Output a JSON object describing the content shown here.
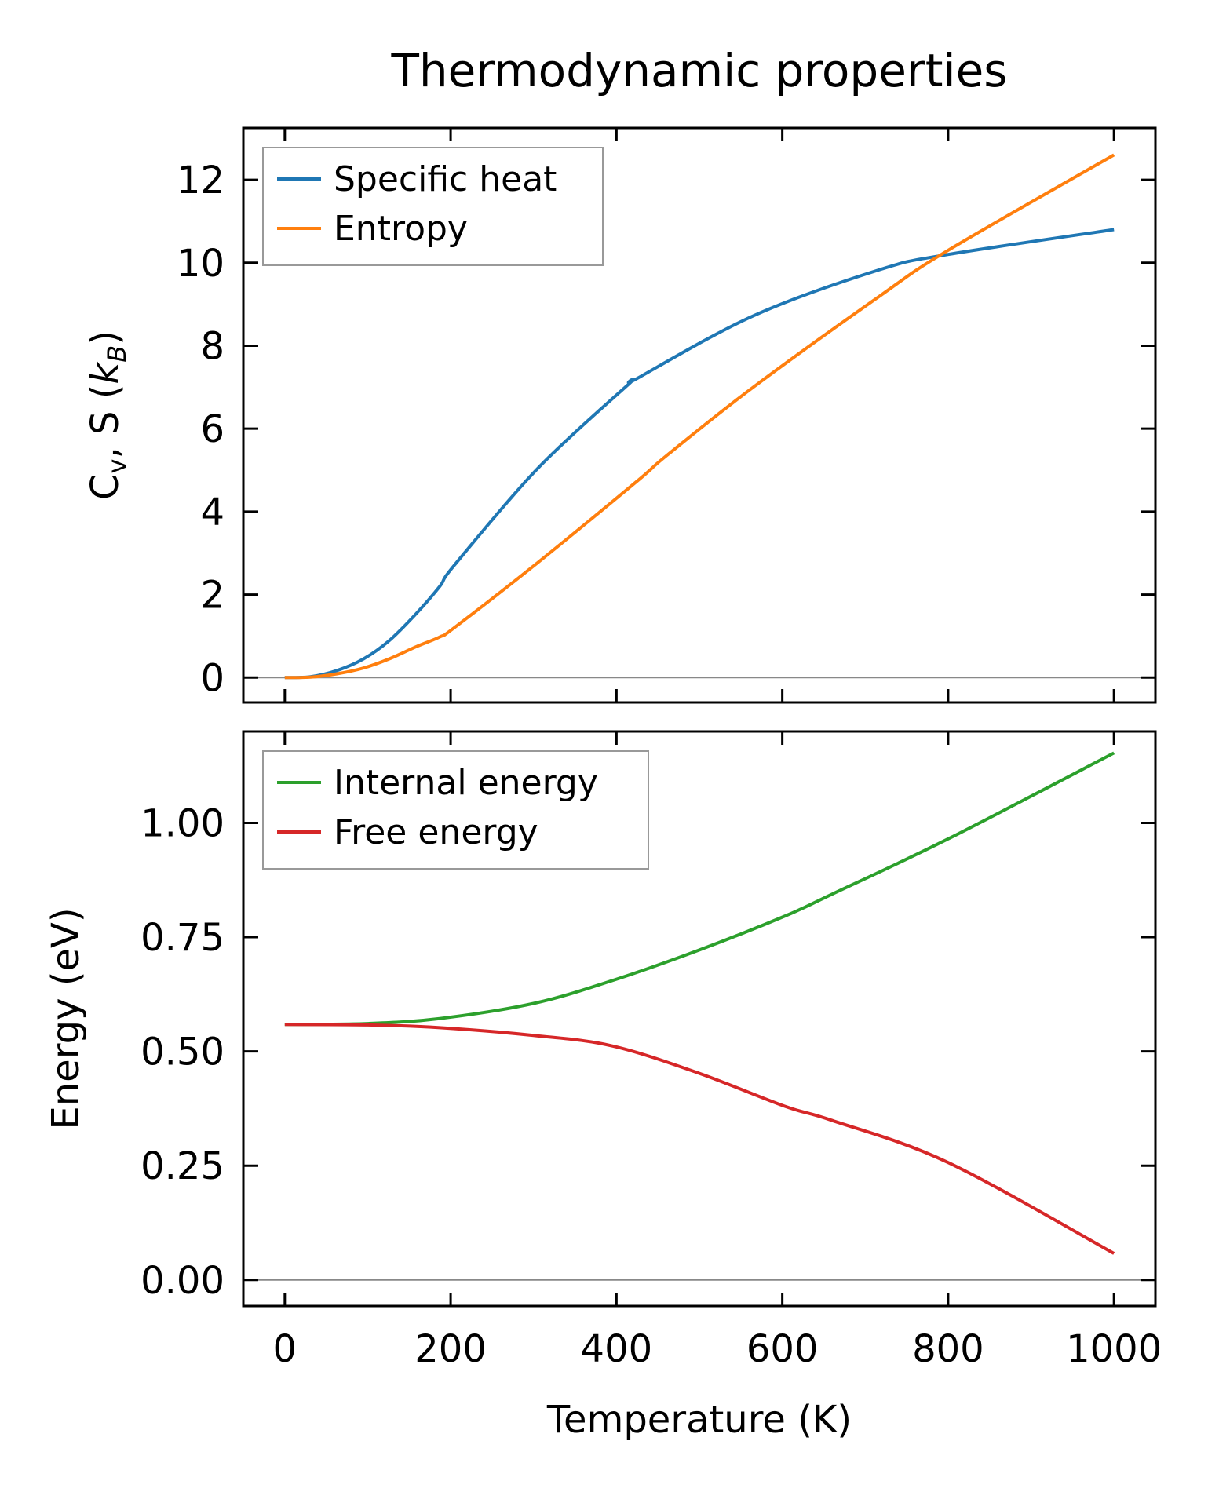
{
  "figure": {
    "title": "Thermodynamic properties",
    "xlabel": "Temperature (K)"
  },
  "chart_data": [
    {
      "type": "line",
      "panel": "top",
      "title": "",
      "xlabel": "",
      "ylabel": {
        "main": "C",
        "sub1": "v",
        "mid": ", S (",
        "italic": "k",
        "sub2": "B",
        "end": ")"
      },
      "xlim": [
        -50,
        1050
      ],
      "ylim": [
        -0.6,
        13.25
      ],
      "xticks": [
        0,
        200,
        400,
        600,
        800,
        1000
      ],
      "yticks": [
        0,
        2,
        4,
        6,
        8,
        10,
        12
      ],
      "ytick_labels": [
        "0",
        "2",
        "4",
        "6",
        "8",
        "10",
        "12"
      ],
      "zero_line": true,
      "legend": "top-left",
      "series": [
        {
          "name": "Specific heat",
          "color": "#1f77b4",
          "x": [
            0,
            31,
            63,
            95,
            126,
            158,
            187,
            205,
            305,
            414,
            424,
            565,
            717,
            800,
            1000
          ],
          "y": [
            0,
            0.02,
            0.17,
            0.45,
            0.89,
            1.53,
            2.2,
            2.72,
            5.04,
            7.06,
            7.2,
            8.72,
            9.83,
            10.2,
            10.8
          ]
        },
        {
          "name": "Entropy",
          "color": "#ff7f0e",
          "x": [
            0,
            31,
            63,
            95,
            126,
            158,
            187,
            205,
            305,
            424,
            461,
            565,
            717,
            800,
            1000
          ],
          "y": [
            0,
            0.01,
            0.09,
            0.23,
            0.45,
            0.74,
            0.98,
            1.21,
            2.77,
            4.72,
            5.36,
            7.0,
            9.19,
            10.3,
            12.6
          ]
        }
      ]
    },
    {
      "type": "line",
      "panel": "bottom",
      "title": "",
      "xlabel": "Temperature (K)",
      "ylabel": "Energy (eV)",
      "xlim": [
        -50,
        1050
      ],
      "ylim": [
        -0.057,
        1.2
      ],
      "xticks": [
        0,
        200,
        400,
        600,
        800,
        1000
      ],
      "xtick_labels": [
        "0",
        "200",
        "400",
        "600",
        "800",
        "1000"
      ],
      "yticks": [
        0,
        0.25,
        0.5,
        0.75,
        1.0
      ],
      "ytick_labels": [
        "0.00",
        "0.25",
        "0.50",
        "0.75",
        "1.00"
      ],
      "zero_line": true,
      "legend": "top-left",
      "series": [
        {
          "name": "Internal energy",
          "color": "#2ca02c",
          "x": [
            0,
            100,
            187,
            300,
            395,
            500,
            603,
            660,
            800,
            1000
          ],
          "y": [
            0.559,
            0.561,
            0.572,
            0.605,
            0.655,
            0.722,
            0.796,
            0.844,
            0.965,
            1.153
          ]
        },
        {
          "name": "Free energy",
          "color": "#d62728",
          "x": [
            0,
            100,
            187,
            300,
            395,
            500,
            603,
            660,
            800,
            1000
          ],
          "y": [
            0.559,
            0.558,
            0.552,
            0.535,
            0.512,
            0.452,
            0.38,
            0.349,
            0.257,
            0.058
          ]
        }
      ]
    }
  ]
}
